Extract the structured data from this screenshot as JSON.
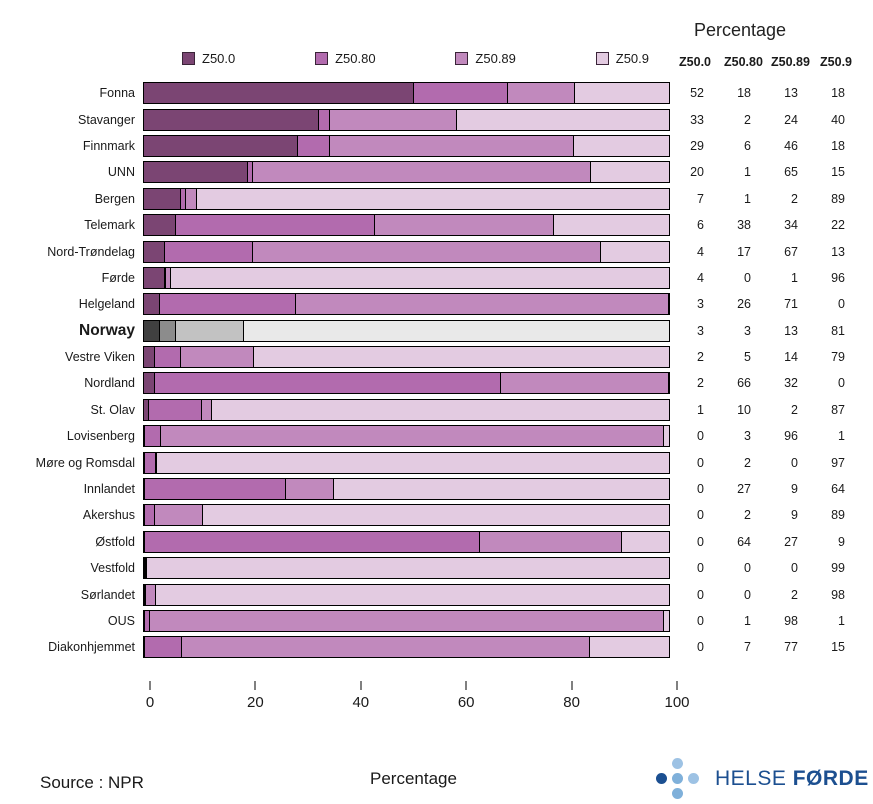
{
  "header": {
    "title": "Percentage"
  },
  "legend": {
    "items": [
      "Z50.0",
      "Z50.80",
      "Z50.89",
      "Z50.9"
    ]
  },
  "footer": {
    "source": "Source : NPR",
    "xlabel": "Percentage"
  },
  "logo": {
    "word1": "HELSE",
    "word2": "FØRDE",
    "text_color": "#1C4F90",
    "dot_colors": {
      "dark": "#1B4F91",
      "medium": "#7FB0DA",
      "light": "#9DC2E4"
    }
  },
  "chart_data": {
    "type": "bar",
    "stacked": true,
    "orientation": "horizontal",
    "xlim": [
      0,
      100
    ],
    "xticks": [
      0,
      20,
      40,
      60,
      80,
      100
    ],
    "xlabel": "Percentage",
    "legend_position": "top",
    "series_names": [
      "Z50.0",
      "Z50.80",
      "Z50.89",
      "Z50.9"
    ],
    "value_table_columns": [
      "Z50.0",
      "Z50.80",
      "Z50.89",
      "Z50.9"
    ],
    "series_colors": [
      "#7B4573",
      "#B26BAE",
      "#C189BD",
      "#E3CBE1"
    ],
    "highlight": "Norway",
    "highlight_colors": [
      "#404040",
      "#8C8C8C",
      "#C2C2C2",
      "#E9E9E9"
    ],
    "rows": [
      {
        "label": "Fonna",
        "values": [
          52,
          18,
          13,
          18
        ]
      },
      {
        "label": "Stavanger",
        "values": [
          33,
          2,
          24,
          40
        ]
      },
      {
        "label": "Finnmark",
        "values": [
          29,
          6,
          46,
          18
        ]
      },
      {
        "label": "UNN",
        "values": [
          20,
          1,
          65,
          15
        ]
      },
      {
        "label": "Bergen",
        "values": [
          7,
          1,
          2,
          89
        ]
      },
      {
        "label": "Telemark",
        "values": [
          6,
          38,
          34,
          22
        ]
      },
      {
        "label": "Nord-Trøndelag",
        "values": [
          4,
          17,
          67,
          13
        ]
      },
      {
        "label": "Førde",
        "values": [
          4,
          0,
          1,
          96
        ]
      },
      {
        "label": "Helgeland",
        "values": [
          3,
          26,
          71,
          0
        ]
      },
      {
        "label": "Norway",
        "values": [
          3,
          3,
          13,
          81
        ]
      },
      {
        "label": "Vestre Viken",
        "values": [
          2,
          5,
          14,
          79
        ]
      },
      {
        "label": "Nordland",
        "values": [
          2,
          66,
          32,
          0
        ]
      },
      {
        "label": "St. Olav",
        "values": [
          1,
          10,
          2,
          87
        ]
      },
      {
        "label": "Lovisenberg",
        "values": [
          0,
          3,
          96,
          1
        ]
      },
      {
        "label": "Møre og Romsdal",
        "values": [
          0,
          2,
          0,
          97
        ]
      },
      {
        "label": "Innlandet",
        "values": [
          0,
          27,
          9,
          64
        ]
      },
      {
        "label": "Akershus",
        "values": [
          0,
          2,
          9,
          89
        ]
      },
      {
        "label": "Østfold",
        "values": [
          0,
          64,
          27,
          9
        ]
      },
      {
        "label": "Vestfold",
        "values": [
          0,
          0,
          0,
          99
        ]
      },
      {
        "label": "Sørlandet",
        "values": [
          0,
          0,
          2,
          98
        ]
      },
      {
        "label": "OUS",
        "values": [
          0,
          1,
          98,
          1
        ]
      },
      {
        "label": "Diakonhjemmet",
        "values": [
          0,
          7,
          77,
          15
        ]
      }
    ]
  }
}
